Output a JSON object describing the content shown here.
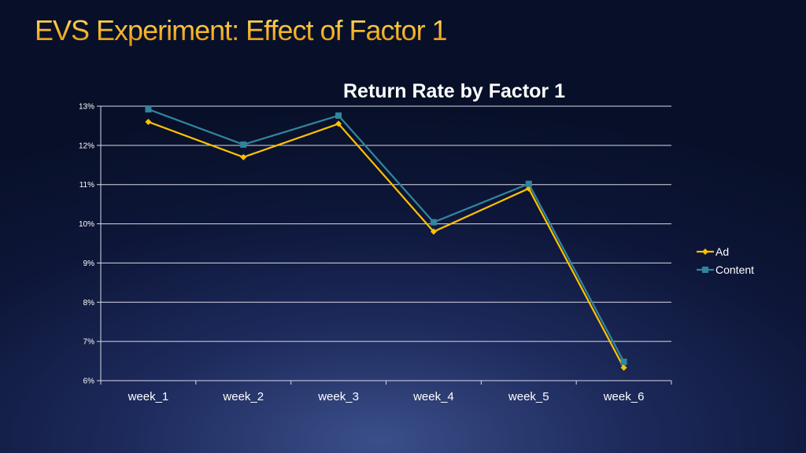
{
  "slide": {
    "title": "EVS Experiment: Effect of Factor 1"
  },
  "chart_data": {
    "type": "line",
    "title": "Return Rate by Factor 1",
    "xlabel": "",
    "ylabel": "",
    "categories": [
      "week_1",
      "week_2",
      "week_3",
      "week_4",
      "week_5",
      "week_6"
    ],
    "ylim": [
      6,
      13
    ],
    "yticks": [
      6,
      7,
      8,
      9,
      10,
      11,
      12,
      13
    ],
    "ytick_labels": [
      "6%",
      "7%",
      "8%",
      "9%",
      "10%",
      "11%",
      "12%",
      "13%"
    ],
    "grid": true,
    "legend_position": "right",
    "series": [
      {
        "name": "Ad",
        "values": [
          12.6,
          11.7,
          12.55,
          9.8,
          10.9,
          6.33
        ],
        "color": "#ffc000",
        "marker": "diamond"
      },
      {
        "name": "Content",
        "values": [
          12.92,
          12.02,
          12.76,
          10.04,
          11.02,
          6.48
        ],
        "color": "#31859c",
        "marker": "square"
      }
    ]
  }
}
